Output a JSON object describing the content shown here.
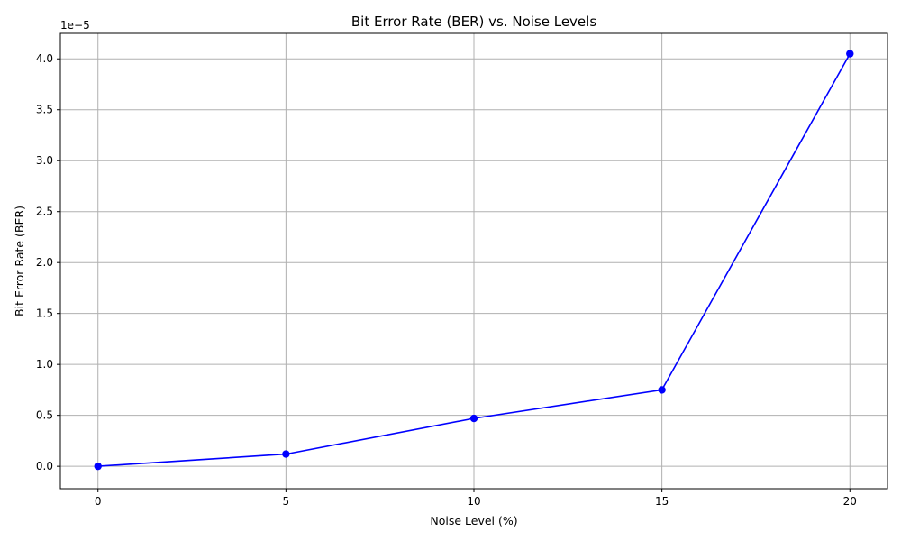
{
  "chart_data": {
    "type": "line",
    "title": "Bit Error Rate (BER) vs. Noise Levels",
    "xlabel": "Noise Level (%)",
    "ylabel": "Bit Error Rate (BER)",
    "offset_label": "1e−5",
    "x": [
      0,
      5,
      10,
      15,
      20
    ],
    "series": [
      {
        "values": [
          0.0,
          1.2e-06,
          4.7e-06,
          7.5e-06,
          4.05e-05
        ]
      }
    ],
    "xlim": [
      -1,
      21
    ],
    "ylim": [
      -2.2e-06,
      4.25e-05
    ],
    "x_ticks": [
      0,
      5,
      10,
      15,
      20
    ],
    "x_tick_labels": [
      "0",
      "5",
      "10",
      "15",
      "20"
    ],
    "y_ticks": [
      0.0,
      5e-06,
      1e-05,
      1.5e-05,
      2e-05,
      2.5e-05,
      3e-05,
      3.5e-05,
      4e-05
    ],
    "y_tick_labels": [
      "0.0",
      "0.5",
      "1.0",
      "1.5",
      "2.0",
      "2.5",
      "3.0",
      "3.5",
      "4.0"
    ],
    "grid": true,
    "line_color": "#0000ff",
    "marker": "circle"
  }
}
